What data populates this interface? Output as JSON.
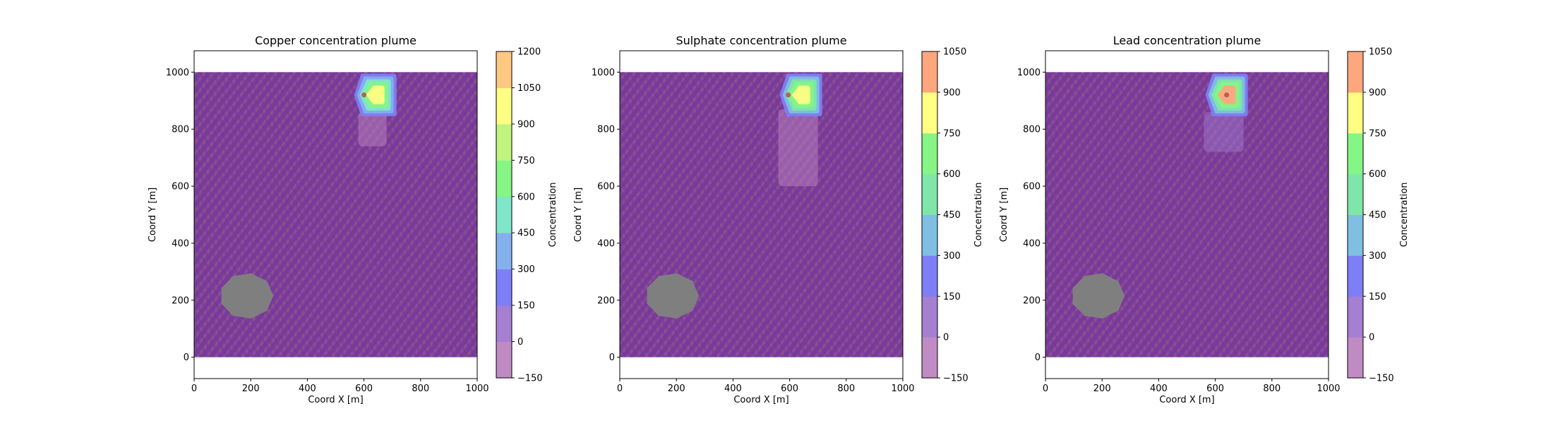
{
  "chart_data": [
    {
      "type": "heatmap",
      "subtype": "filled-contour",
      "title": "Copper concentration plume",
      "xlabel": "Coord X [m]",
      "ylabel": "Coord Y [m]",
      "xlim": [
        0,
        1000
      ],
      "ylim": [
        -75,
        1075
      ],
      "x_ticks": [
        0,
        200,
        400,
        600,
        800,
        1000
      ],
      "y_ticks": [
        0,
        200,
        400,
        600,
        800,
        1000
      ],
      "colorbar": {
        "label": "Concentration",
        "levels": [
          -150,
          0,
          150,
          300,
          450,
          600,
          750,
          900,
          1050,
          1200
        ],
        "tick_labels": [
          "−150",
          "0",
          "150",
          "300",
          "450",
          "600",
          "750",
          "900",
          "1050",
          "1200"
        ],
        "colors": [
          "#c08bc4",
          "#a57fd2",
          "#7e7ef6",
          "#84b0ee",
          "#7fe6c9",
          "#85f586",
          "#bff57f",
          "#fefe83",
          "#fec883",
          "#fea77f"
        ]
      },
      "plume": {
        "core_x": [
          600,
          680
        ],
        "core_y": [
          880,
          960
        ],
        "peak_position_x": 600,
        "peak_position_y": 920,
        "peak_value_band": [
          900,
          1050
        ]
      },
      "trail": {
        "x": [
          580,
          680
        ],
        "y": [
          740,
          860
        ],
        "value_band": [
          -150,
          0
        ]
      },
      "no_data_region": {
        "center_x": 185,
        "center_y": 215,
        "radius": 95
      }
    },
    {
      "type": "heatmap",
      "subtype": "filled-contour",
      "title": "Sulphate concentration plume",
      "xlabel": "Coord X [m]",
      "ylabel": "Coord Y [m]",
      "xlim": [
        0,
        1000
      ],
      "ylim": [
        -75,
        1075
      ],
      "x_ticks": [
        0,
        200,
        400,
        600,
        800,
        1000
      ],
      "y_ticks": [
        0,
        200,
        400,
        600,
        800,
        1000
      ],
      "colorbar": {
        "label": "Concentration",
        "levels": [
          -150,
          0,
          150,
          300,
          450,
          600,
          750,
          900,
          1050
        ],
        "tick_labels": [
          "−150",
          "0",
          "150",
          "300",
          "450",
          "600",
          "750",
          "900",
          "1050"
        ],
        "colors": [
          "#c08bc4",
          "#a57fd2",
          "#7e7ef6",
          "#7ebfe2",
          "#7fe6a9",
          "#85f586",
          "#fefe83",
          "#fea77f"
        ]
      },
      "plume": {
        "core_x": [
          600,
          680
        ],
        "core_y": [
          880,
          960
        ],
        "peak_position_x": 595,
        "peak_position_y": 920,
        "peak_value_band": [
          750,
          900
        ]
      },
      "trail": {
        "x": [
          560,
          700
        ],
        "y": [
          600,
          870
        ],
        "value_band": [
          -150,
          0
        ]
      },
      "no_data_region": {
        "center_x": 185,
        "center_y": 215,
        "radius": 95
      }
    },
    {
      "type": "heatmap",
      "subtype": "filled-contour",
      "title": "Lead concentration plume",
      "xlabel": "Coord X [m]",
      "ylabel": "Coord Y [m]",
      "xlim": [
        0,
        1000
      ],
      "ylim": [
        -75,
        1075
      ],
      "x_ticks": [
        0,
        200,
        400,
        600,
        800,
        1000
      ],
      "y_ticks": [
        0,
        200,
        400,
        600,
        800,
        1000
      ],
      "colorbar": {
        "label": "Concentration",
        "levels": [
          -150,
          0,
          150,
          300,
          450,
          600,
          750,
          900,
          1050
        ],
        "tick_labels": [
          "−150",
          "0",
          "150",
          "300",
          "450",
          "600",
          "750",
          "900",
          "1050"
        ],
        "colors": [
          "#c08bc4",
          "#a57fd2",
          "#7e7ef6",
          "#7ebfe2",
          "#7fe6a9",
          "#85f586",
          "#fefe83",
          "#fea77f"
        ]
      },
      "plume": {
        "core_x": [
          600,
          680
        ],
        "core_y": [
          880,
          960
        ],
        "peak_position_x": 640,
        "peak_position_y": 920,
        "peak_value_band": [
          900,
          1050
        ]
      },
      "trail": {
        "x": [
          560,
          700
        ],
        "y": [
          720,
          860
        ],
        "value_band": [
          0,
          150
        ]
      },
      "no_data_region": {
        "center_x": 185,
        "center_y": 215,
        "radius": 95
      }
    }
  ]
}
